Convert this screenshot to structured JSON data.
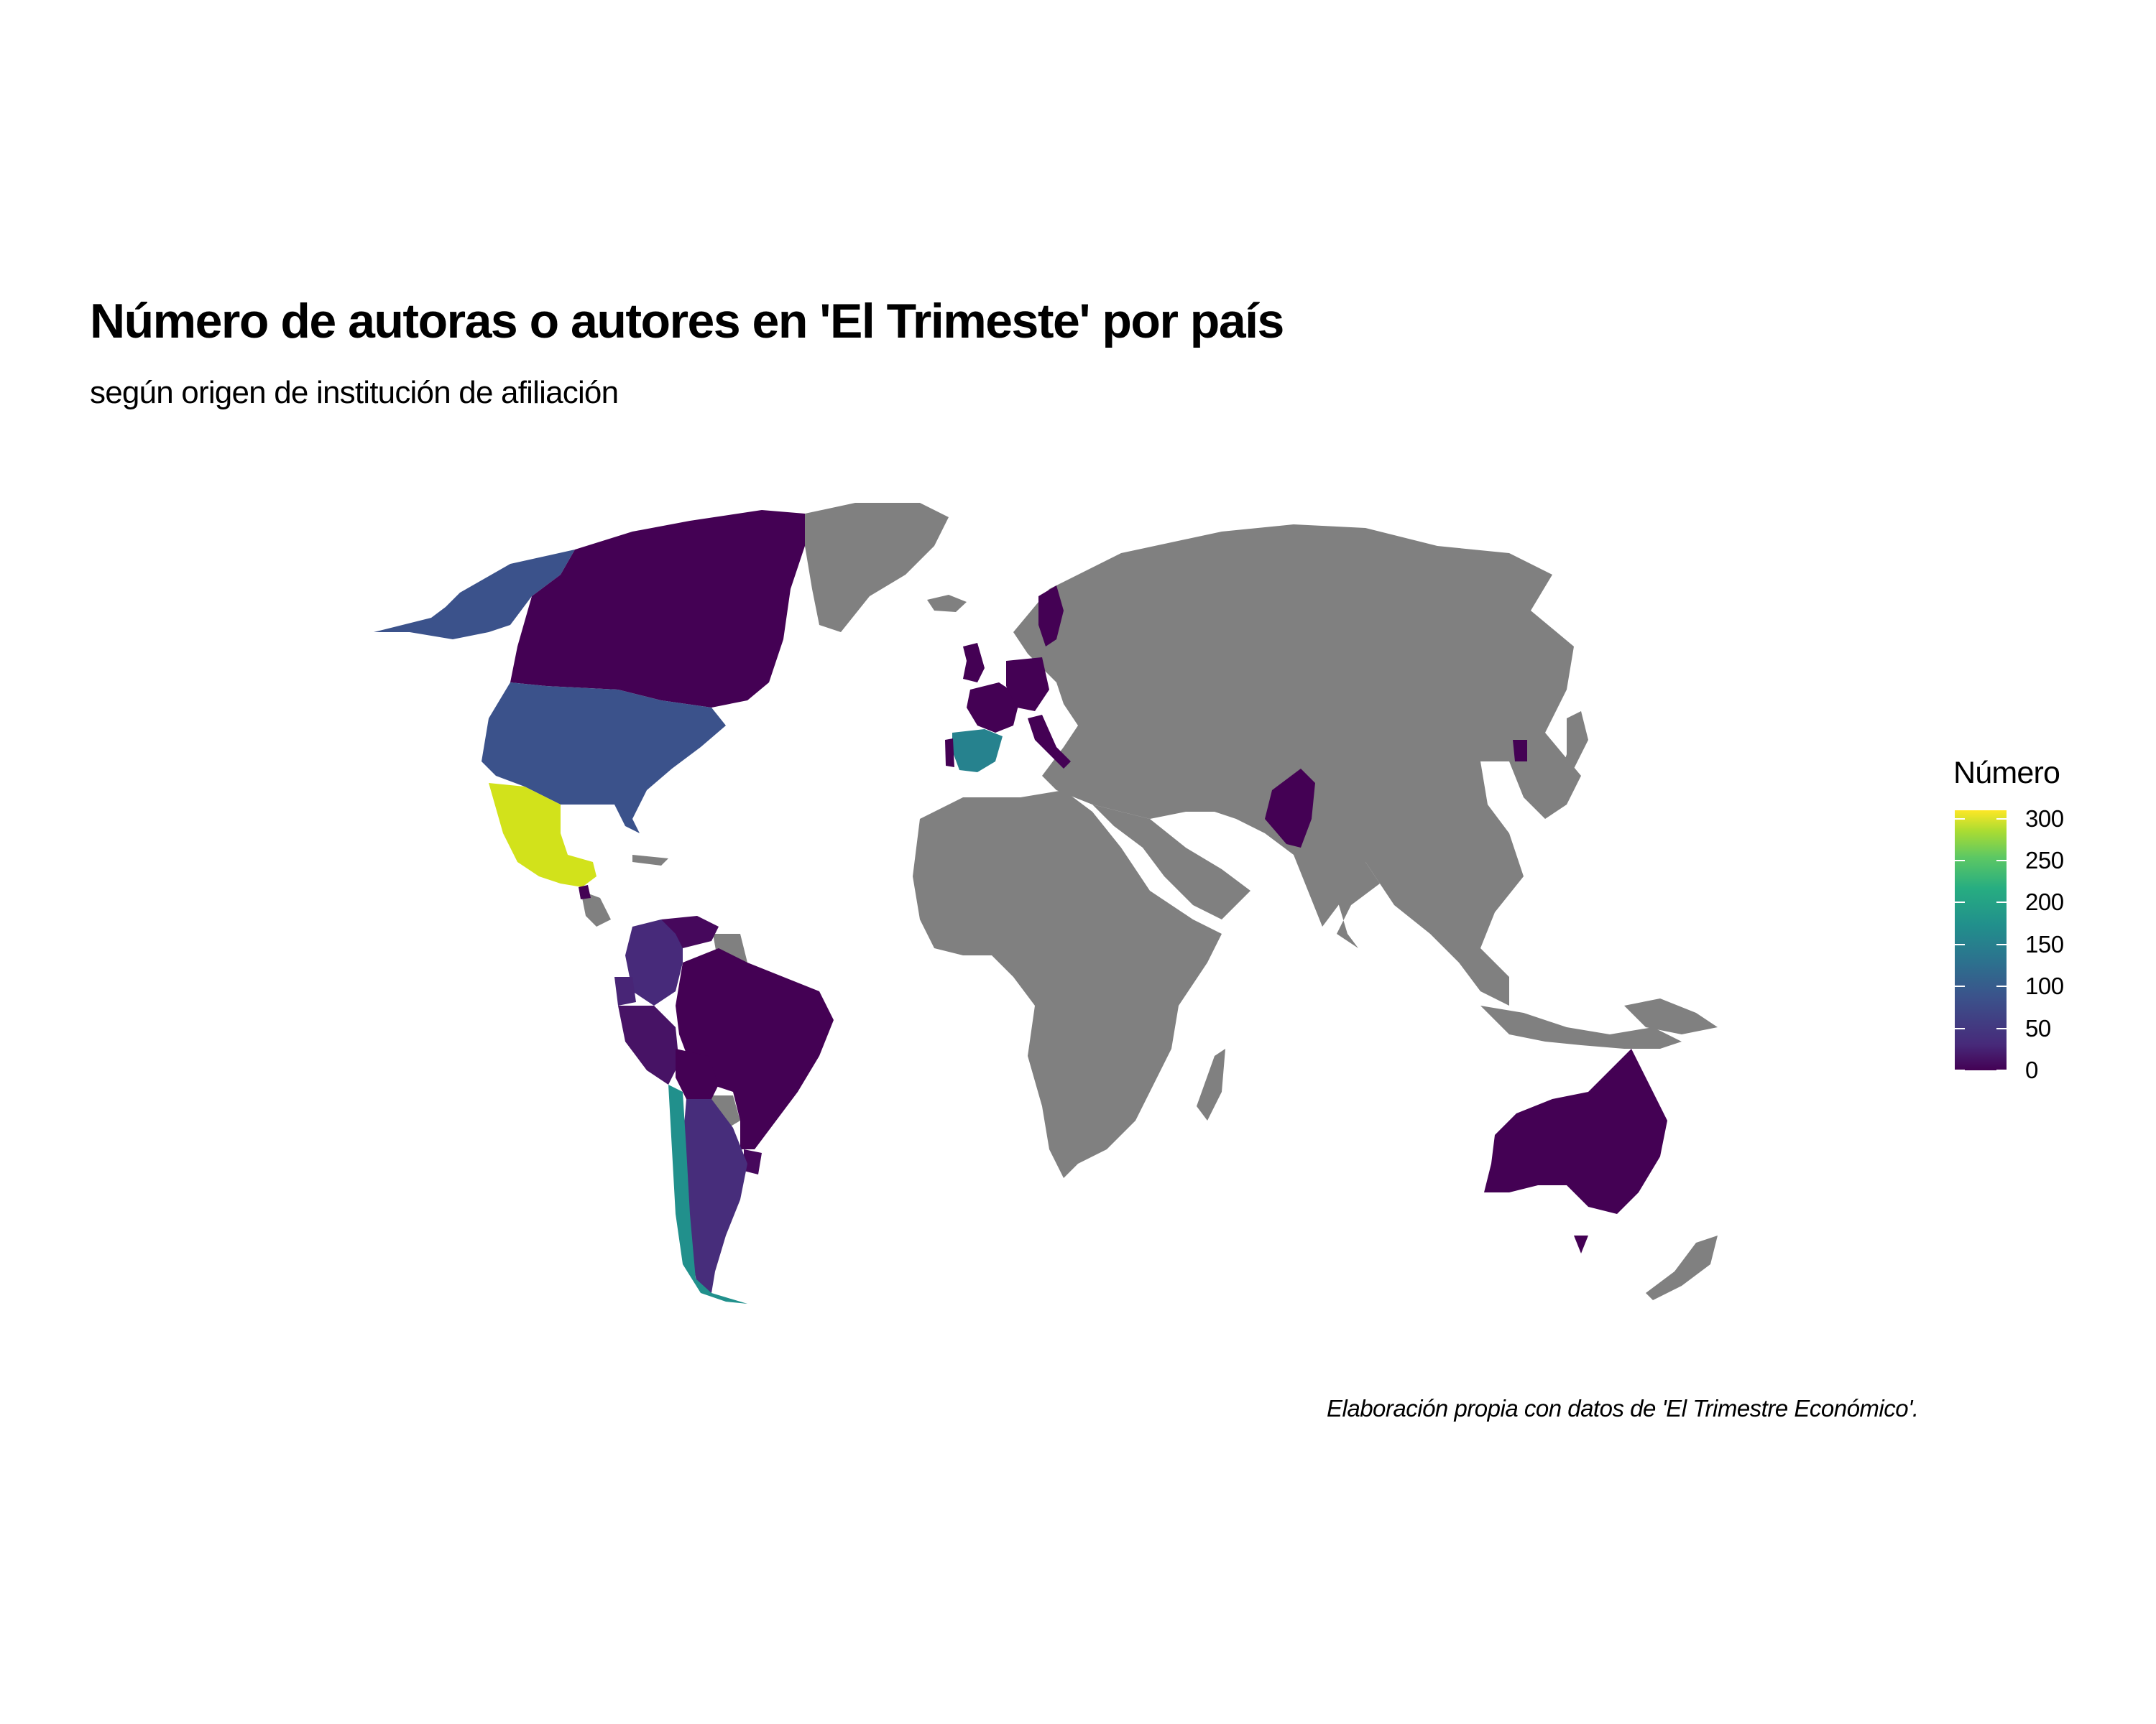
{
  "title": "Número de autoras o autores en 'El Trimeste' por país",
  "subtitle": "según origen de institución de afiliación",
  "caption": "Elaboración propia con datos de 'El Trimestre Económico'.",
  "legend": {
    "title": "Número",
    "ticks": [
      "300",
      "250",
      "200",
      "150",
      "100",
      "50",
      "0"
    ],
    "range": [
      0,
      310
    ],
    "palette": "viridis"
  },
  "colors": {
    "no_data": "#808080",
    "background": "#ffffff"
  },
  "chart_data": {
    "type": "choropleth",
    "title": "Número de autoras o autores en 'El Trimeste' por país",
    "subtitle": "según origen de institución de afiliación",
    "legend_title": "Número",
    "scale": "viridis",
    "legend_position": "right",
    "values": {
      "Mexico": 290,
      "Spain": 135,
      "Chile": 140,
      "United States": 85,
      "Alaska (United States)": 85,
      "Argentina": 40,
      "Colombia": 30,
      "Peru": 20,
      "Ecuador": 25,
      "Venezuela": 10,
      "Brazil": 5,
      "Bolivia": 5,
      "Uruguay": 10,
      "Canada": 5,
      "United Kingdom": 5,
      "France": 5,
      "Germany": 5,
      "Italy": 5,
      "Sweden": 5,
      "Portugal": 5,
      "Netherlands": 5,
      "Pakistan": 5,
      "South Korea": 5,
      "Australia": 5,
      "Guatemala": 5,
      "Costa Rica": 5
    }
  }
}
